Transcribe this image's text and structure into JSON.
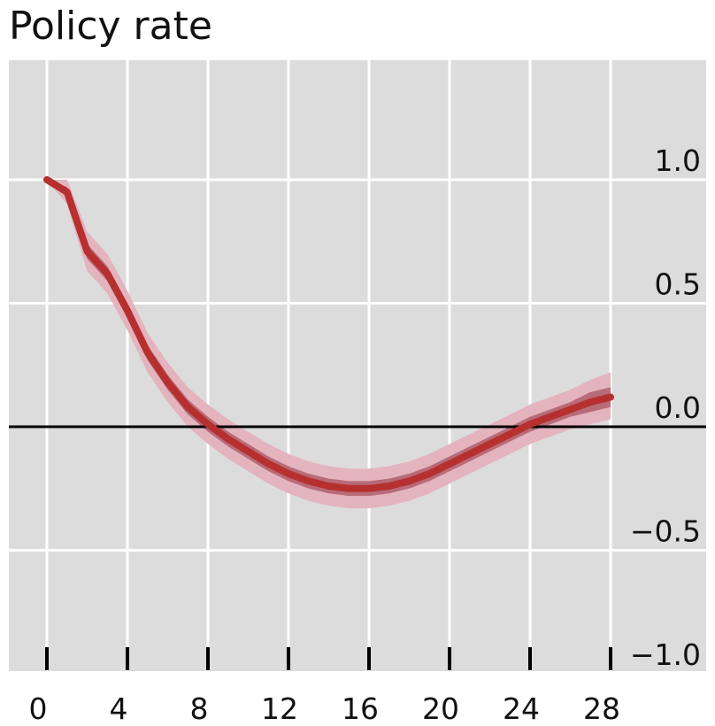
{
  "chart_data": {
    "type": "line",
    "title": "Policy rate",
    "xlabel": "",
    "ylabel": "",
    "x_ticks": [
      0,
      4,
      8,
      12,
      16,
      20,
      24,
      28
    ],
    "y_ticks": [
      1.0,
      0.5,
      0.0,
      -0.5,
      -1.0
    ],
    "y_tick_labels": [
      "1.0",
      "0.5",
      "0.0",
      "−0.5",
      "−1.0"
    ],
    "xlim": [
      -1.8,
      33
    ],
    "ylim": [
      -1.0,
      1.49
    ],
    "grid": true,
    "zero_line": true,
    "colors": {
      "plot_background": "#dcdcdc",
      "grid": "#ffffff",
      "median": "#b5302e",
      "inner_band": "#b86b78",
      "outer_band": "#e3b4be",
      "zero_line": "#000000"
    },
    "series": [
      {
        "x": [
          0,
          1,
          2,
          3,
          4,
          5,
          6,
          7,
          8,
          9,
          10,
          11,
          12,
          13,
          14,
          15,
          16,
          17,
          18,
          19,
          20,
          21,
          22,
          23,
          24,
          25,
          26,
          27,
          28
        ],
        "values": [
          1.0,
          0.95,
          0.71,
          0.62,
          0.47,
          0.3,
          0.18,
          0.08,
          0.01,
          -0.05,
          -0.1,
          -0.15,
          -0.19,
          -0.22,
          -0.24,
          -0.25,
          -0.25,
          -0.24,
          -0.22,
          -0.19,
          -0.15,
          -0.11,
          -0.07,
          -0.03,
          0.01,
          0.04,
          0.07,
          0.1,
          0.12
        ],
        "inner_band": {
          "lower": [
            1.0,
            0.93,
            0.68,
            0.59,
            0.44,
            0.27,
            0.15,
            0.05,
            -0.02,
            -0.08,
            -0.13,
            -0.18,
            -0.22,
            -0.25,
            -0.27,
            -0.28,
            -0.28,
            -0.27,
            -0.25,
            -0.22,
            -0.18,
            -0.14,
            -0.1,
            -0.06,
            -0.02,
            0.01,
            0.04,
            0.06,
            0.08
          ],
          "upper": [
            1.0,
            0.97,
            0.74,
            0.65,
            0.5,
            0.33,
            0.21,
            0.11,
            0.04,
            -0.02,
            -0.07,
            -0.12,
            -0.16,
            -0.19,
            -0.21,
            -0.22,
            -0.22,
            -0.21,
            -0.19,
            -0.16,
            -0.12,
            -0.08,
            -0.04,
            0.0,
            0.04,
            0.07,
            0.1,
            0.14,
            0.16
          ]
        },
        "outer_band": {
          "lower": [
            1.0,
            0.9,
            0.63,
            0.54,
            0.39,
            0.22,
            0.1,
            0.0,
            -0.07,
            -0.13,
            -0.18,
            -0.23,
            -0.27,
            -0.3,
            -0.32,
            -0.33,
            -0.33,
            -0.32,
            -0.3,
            -0.27,
            -0.23,
            -0.19,
            -0.15,
            -0.11,
            -0.07,
            -0.04,
            -0.01,
            0.01,
            0.03
          ],
          "upper": [
            1.0,
            1.0,
            0.79,
            0.7,
            0.55,
            0.38,
            0.26,
            0.16,
            0.09,
            0.03,
            -0.02,
            -0.07,
            -0.11,
            -0.14,
            -0.16,
            -0.17,
            -0.17,
            -0.16,
            -0.14,
            -0.11,
            -0.07,
            -0.03,
            0.01,
            0.05,
            0.09,
            0.12,
            0.15,
            0.19,
            0.22
          ]
        }
      }
    ]
  }
}
